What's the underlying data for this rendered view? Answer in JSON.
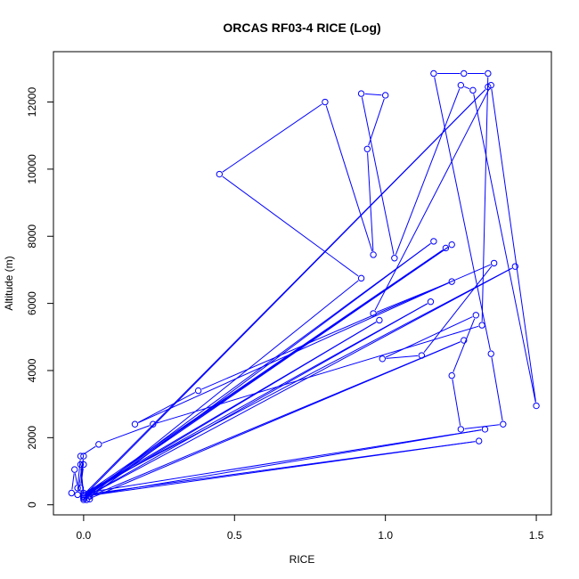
{
  "chart_data": {
    "type": "scatter",
    "title": "ORCAS RF03-4 RICE (Log)",
    "xlabel": "RICE",
    "ylabel": "Altitude (m)",
    "xlim": [
      -0.1,
      1.55
    ],
    "ylim": [
      -300,
      13500
    ],
    "x_ticks": [
      0.0,
      0.5,
      1.0,
      1.5
    ],
    "x_tick_labels": [
      "0.0",
      "0.5",
      "1.0",
      "1.5"
    ],
    "y_ticks": [
      0,
      2000,
      4000,
      6000,
      8000,
      10000,
      12000
    ],
    "y_tick_labels": [
      "0",
      "2000",
      "4000",
      "6000",
      "8000",
      "10000",
      "12000"
    ],
    "grid": false,
    "legend": "none",
    "style": "points connected by lines (type b)",
    "series_color": "#0000ff",
    "x": [
      0.0,
      0.02,
      0.0,
      -0.01,
      0.0,
      1.2,
      0.0,
      1.22,
      0.0,
      1.43,
      0.0,
      1.33,
      0.0,
      1.31,
      0.0,
      0.98,
      0.0,
      1.34,
      0.0,
      1.15,
      0.0,
      1.16,
      0.01,
      1.26,
      0.02,
      0.92,
      0.45,
      0.8,
      0.96,
      0.94,
      1.0,
      0.92,
      1.03,
      1.25,
      1.29,
      1.5,
      1.35,
      0.96,
      1.22,
      0.17,
      0.38,
      1.36,
      1.12,
      0.99,
      1.3,
      1.22,
      1.25,
      1.39,
      1.35,
      1.16,
      1.26,
      1.34,
      1.32,
      0.23,
      0.05,
      -0.01,
      -0.02,
      -0.03,
      -0.04,
      -0.02,
      0.0,
      -0.01,
      0.0
    ],
    "y": [
      150,
      170,
      200,
      1200,
      300,
      7650,
      250,
      7750,
      200,
      7100,
      350,
      2250,
      250,
      1900,
      300,
      5500,
      250,
      12450,
      300,
      6050,
      200,
      7850,
      150,
      4900,
      250,
      6750,
      9850,
      12000,
      7450,
      10600,
      12200,
      12250,
      7350,
      12500,
      12350,
      2950,
      12500,
      5700,
      6650,
      2400,
      3400,
      7200,
      4450,
      4350,
      5650,
      3850,
      2250,
      2400,
      4500,
      12850,
      12850,
      12850,
      5350,
      2400,
      1800,
      1450,
      500,
      1050,
      350,
      300,
      1450,
      500,
      1200
    ]
  }
}
